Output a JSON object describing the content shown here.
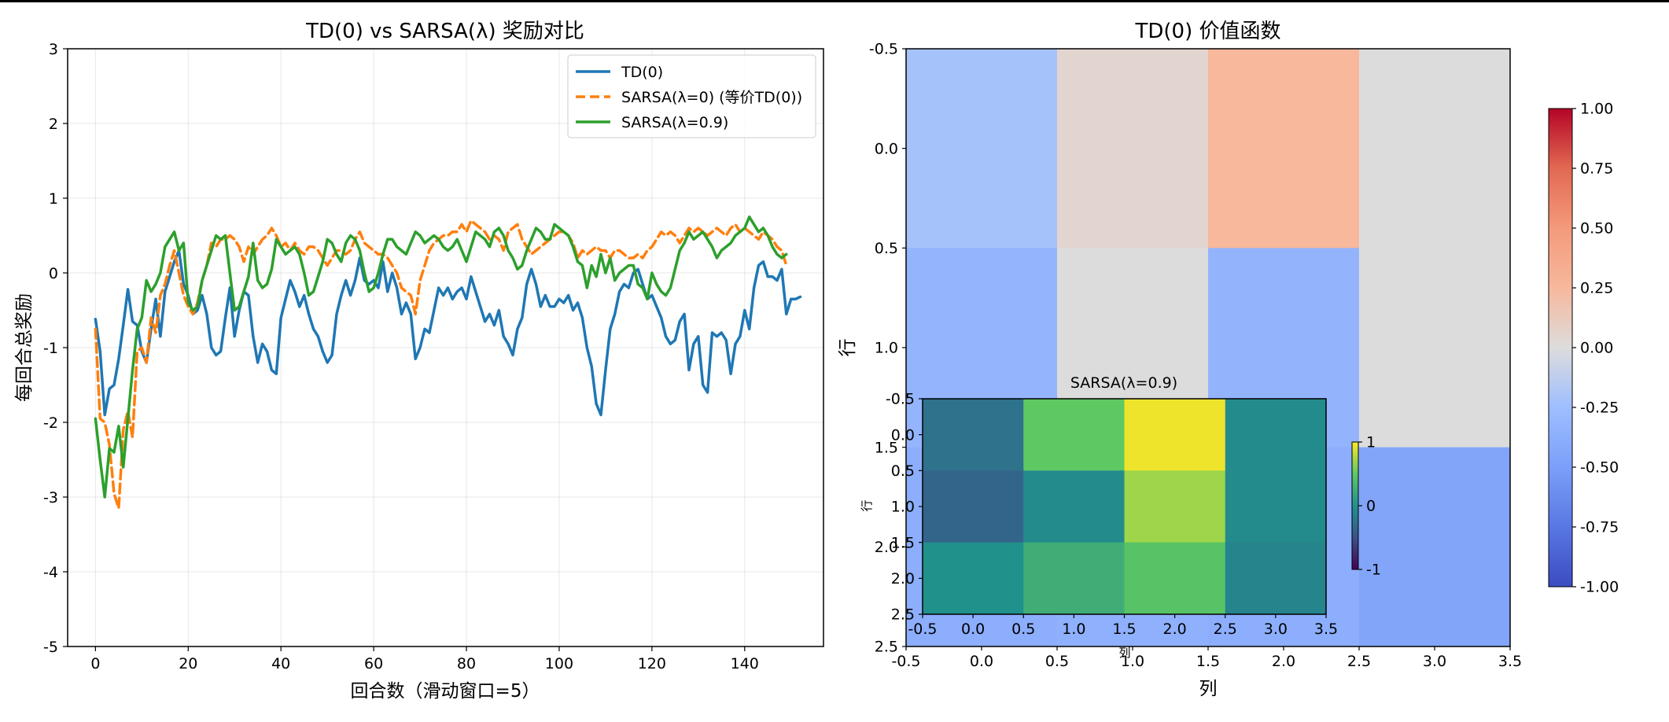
{
  "chart_data": [
    {
      "id": "reward",
      "type": "line",
      "title": "TD(0) vs SARSA(λ) 奖励对比",
      "xlabel": "回合数（滑动窗口=5）",
      "ylabel": "每回合总奖励",
      "xlim": [
        -6,
        157
      ],
      "ylim": [
        -5,
        3
      ],
      "xticks": [
        "0",
        "20",
        "40",
        "60",
        "80",
        "100",
        "120",
        "140"
      ],
      "yticks": [
        "3",
        "2",
        "1",
        "0",
        "-1",
        "-2",
        "-3",
        "-4",
        "-5"
      ],
      "grid": true,
      "legend_position": "top-right",
      "series": [
        {
          "name": "TD(0)",
          "color": "#1f77b4",
          "dash": "solid",
          "x_start": 0,
          "values": [
            -0.62,
            -1.05,
            -1.9,
            -1.55,
            -1.5,
            -1.15,
            -0.7,
            -0.22,
            -0.65,
            -0.7,
            -1.05,
            -1.2,
            -0.75,
            -0.35,
            -0.85,
            -0.25,
            -0.05,
            0.15,
            0.3,
            -0.15,
            -0.3,
            -0.55,
            -0.5,
            -0.3,
            -0.55,
            -1.0,
            -1.1,
            -1.05,
            -0.6,
            -0.2,
            -0.85,
            -0.5,
            -0.25,
            -0.3,
            -0.85,
            -1.2,
            -0.95,
            -1.05,
            -1.3,
            -1.35,
            -0.6,
            -0.35,
            -0.1,
            -0.25,
            -0.45,
            -0.3,
            -0.55,
            -0.75,
            -0.85,
            -1.05,
            -1.2,
            -1.1,
            -0.55,
            -0.3,
            -0.1,
            -0.3,
            -0.1,
            0.2,
            -0.1,
            -0.15,
            -0.1,
            -0.2,
            0.15,
            -0.25,
            0.0,
            -0.2,
            -0.55,
            -0.4,
            -0.55,
            -1.15,
            -1.0,
            -0.75,
            -0.8,
            -0.5,
            -0.2,
            -0.3,
            -0.2,
            -0.35,
            -0.25,
            -0.2,
            -0.35,
            -0.05,
            -0.25,
            -0.45,
            -0.65,
            -0.55,
            -0.7,
            -0.5,
            -0.85,
            -0.95,
            -1.1,
            -0.75,
            -0.6,
            -0.15,
            0.05,
            -0.15,
            -0.45,
            -0.3,
            -0.45,
            -0.45,
            -0.35,
            -0.4,
            -0.3,
            -0.5,
            -0.4,
            -0.6,
            -1.0,
            -1.25,
            -1.75,
            -1.9,
            -1.3,
            -0.75,
            -0.55,
            -0.25,
            -0.15,
            -0.2,
            0.0,
            0.05,
            -0.15,
            -0.35,
            -0.3,
            -0.45,
            -0.6,
            -0.85,
            -0.95,
            -0.9,
            -0.65,
            -0.55,
            -1.3,
            -0.95,
            -0.85,
            -1.5,
            -1.6,
            -0.8,
            -0.85,
            -0.8,
            -0.9,
            -1.35,
            -0.95,
            -0.85,
            -0.5,
            -0.75,
            -0.2,
            0.1,
            0.15,
            -0.05,
            -0.05,
            -0.1,
            0.05,
            -0.55,
            -0.35,
            -0.35,
            -0.32
          ]
        },
        {
          "name": "SARSA(λ=0) (等价TD(0))",
          "color": "#ff7f0e",
          "dash": "dashed",
          "x_start": 0,
          "values": [
            -0.75,
            -1.95,
            -2.0,
            -2.3,
            -2.95,
            -3.15,
            -2.1,
            -1.85,
            -2.2,
            -1.05,
            -1.0,
            -1.2,
            -0.6,
            -0.8,
            -0.3,
            -0.15,
            0.1,
            0.3,
            0.0,
            -0.3,
            -0.45,
            -0.55,
            -0.4,
            -0.1,
            0.1,
            0.4,
            0.35,
            0.45,
            0.45,
            0.5,
            0.45,
            0.35,
            0.15,
            0.35,
            0.25,
            0.35,
            0.45,
            0.5,
            0.6,
            0.5,
            0.35,
            0.4,
            0.3,
            0.4,
            0.3,
            0.25,
            0.35,
            0.35,
            0.3,
            0.2,
            0.1,
            0.2,
            0.3,
            0.3,
            0.25,
            0.3,
            0.45,
            0.55,
            0.4,
            0.35,
            0.3,
            0.25,
            0.25,
            0.2,
            0.1,
            0.0,
            -0.2,
            -0.25,
            -0.3,
            -0.55,
            -0.1,
            0.1,
            0.3,
            0.4,
            0.45,
            0.5,
            0.5,
            0.55,
            0.55,
            0.65,
            0.55,
            0.7,
            0.65,
            0.6,
            0.55,
            0.45,
            0.5,
            0.45,
            0.3,
            0.55,
            0.6,
            0.65,
            0.45,
            0.35,
            0.25,
            0.3,
            0.35,
            0.4,
            0.45,
            0.5,
            0.55,
            0.55,
            0.5,
            0.4,
            0.2,
            0.3,
            0.25,
            0.3,
            0.35,
            0.3,
            0.3,
            0.2,
            0.3,
            0.3,
            0.25,
            0.2,
            0.2,
            0.25,
            0.2,
            0.3,
            0.35,
            0.45,
            0.55,
            0.5,
            0.55,
            0.5,
            0.4,
            0.5,
            0.6,
            0.55,
            0.6,
            0.55,
            0.5,
            0.55,
            0.6,
            0.55,
            0.5,
            0.6,
            0.65,
            0.55,
            0.6,
            0.55,
            0.5,
            0.45,
            0.55,
            0.5,
            0.45,
            0.35,
            0.3,
            0.1
          ]
        },
        {
          "name": "SARSA(λ=0.9)",
          "color": "#2ca02c",
          "dash": "solid",
          "x_start": 0,
          "values": [
            -1.95,
            -2.5,
            -3.0,
            -2.35,
            -2.4,
            -2.05,
            -2.6,
            -1.95,
            -1.3,
            -0.75,
            -0.6,
            -0.1,
            -0.25,
            -0.15,
            0.0,
            0.35,
            0.45,
            0.55,
            0.3,
            0.4,
            -0.4,
            -0.5,
            -0.45,
            -0.1,
            0.1,
            0.3,
            0.5,
            0.45,
            0.5,
            0.0,
            -0.5,
            -0.45,
            -0.25,
            -0.05,
            0.4,
            -0.1,
            -0.2,
            -0.15,
            0.05,
            0.45,
            0.35,
            0.25,
            0.3,
            0.35,
            0.25,
            0.0,
            -0.3,
            -0.25,
            -0.05,
            0.15,
            0.45,
            0.4,
            0.25,
            0.15,
            0.4,
            0.5,
            0.45,
            0.3,
            0.0,
            -0.25,
            -0.2,
            0.0,
            0.25,
            0.45,
            0.45,
            0.35,
            0.3,
            0.25,
            0.4,
            0.55,
            0.5,
            0.4,
            0.45,
            0.5,
            0.45,
            0.35,
            0.3,
            0.35,
            0.45,
            0.3,
            0.15,
            0.35,
            0.55,
            0.5,
            0.45,
            0.35,
            0.55,
            0.6,
            0.5,
            0.3,
            0.2,
            0.05,
            0.1,
            0.3,
            0.45,
            0.6,
            0.55,
            0.45,
            0.45,
            0.65,
            0.6,
            0.55,
            0.5,
            0.35,
            0.15,
            0.1,
            -0.2,
            0.1,
            -0.05,
            0.25,
            0.0,
            0.2,
            -0.1,
            0.0,
            0.05,
            0.1,
            0.1,
            -0.15,
            -0.2,
            -0.35,
            0.0,
            -0.15,
            -0.25,
            -0.3,
            -0.2,
            0.05,
            0.3,
            0.4,
            0.55,
            0.45,
            0.5,
            0.55,
            0.45,
            0.35,
            0.2,
            0.3,
            0.35,
            0.4,
            0.5,
            0.55,
            0.6,
            0.75,
            0.65,
            0.55,
            0.6,
            0.5,
            0.35,
            0.25,
            0.2,
            0.25
          ]
        }
      ]
    },
    {
      "id": "td0-value",
      "type": "heatmap",
      "title": "TD(0) 价值函数",
      "xlabel": "列",
      "ylabel": "行",
      "xticks": [
        "-0.5",
        "0.0",
        "0.5",
        "1.0",
        "1.5",
        "2.0",
        "2.5",
        "3.0",
        "3.5"
      ],
      "yticks": [
        "-0.5",
        "0.0",
        "0.5",
        "1.0",
        "1.5",
        "2.0",
        "2.5"
      ],
      "colormap": "coolwarm",
      "vmin": -1,
      "vmax": 1,
      "colorbar_ticks": [
        "1.00",
        "0.75",
        "0.50",
        "0.25",
        "0.00",
        "-0.25",
        "-0.50",
        "-0.75",
        "-1.00"
      ],
      "values": [
        [
          -0.22,
          0.05,
          0.25,
          0.0
        ],
        [
          -0.32,
          0.0,
          -0.33,
          0.0
        ],
        [
          -0.38,
          -0.36,
          -0.38,
          -0.45
        ]
      ]
    },
    {
      "id": "sarsa-value",
      "type": "heatmap",
      "title": "SARSA(λ=0.9)",
      "xlabel": "列",
      "ylabel": "行",
      "xticks": [
        "-0.5",
        "0.0",
        "0.5",
        "1.0",
        "1.5",
        "2.0",
        "2.5",
        "3.0",
        "3.5"
      ],
      "yticks": [
        "-0.5",
        "0.0",
        "0.5",
        "1.0",
        "1.5",
        "2.0",
        "2.5"
      ],
      "colormap": "viridis",
      "vmin": -1,
      "vmax": 1,
      "colorbar_ticks": [
        "1",
        "0",
        "-1"
      ],
      "values": [
        [
          -0.25,
          0.5,
          0.95,
          -0.05
        ],
        [
          -0.35,
          -0.05,
          0.7,
          -0.05
        ],
        [
          0.0,
          0.25,
          0.45,
          -0.1
        ]
      ]
    }
  ]
}
